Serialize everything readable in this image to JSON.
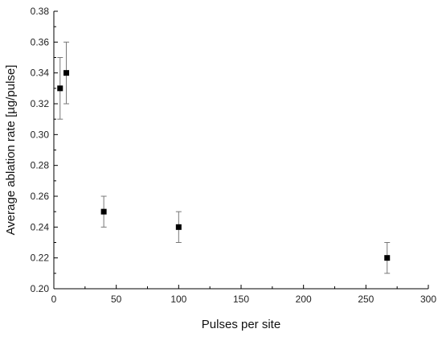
{
  "chart_data": {
    "type": "scatter",
    "title": "",
    "xlabel": "Pulses per site",
    "ylabel": "Average ablation rate [µg/pulse]",
    "xlim": [
      0,
      300
    ],
    "ylim": [
      0.2,
      0.38
    ],
    "xticks": [
      0,
      50,
      100,
      150,
      200,
      250,
      300
    ],
    "yticks": [
      0.2,
      0.22,
      0.24,
      0.26,
      0.28,
      0.3,
      0.32,
      0.34,
      0.36,
      0.38
    ],
    "xtick_labels": [
      "0",
      "50",
      "100",
      "150",
      "200",
      "250",
      "300"
    ],
    "ytick_labels": [
      "0.20",
      "0.22",
      "0.24",
      "0.26",
      "0.28",
      "0.30",
      "0.32",
      "0.34",
      "0.36",
      "0.38"
    ],
    "grid": false,
    "marker": "square",
    "marker_color": "#000000",
    "errorbar_color": "#777777",
    "series": [
      {
        "points": [
          {
            "x": 5,
            "y": 0.33,
            "err": 0.02
          },
          {
            "x": 10,
            "y": 0.34,
            "err": 0.02
          },
          {
            "x": 40,
            "y": 0.25,
            "err": 0.01
          },
          {
            "x": 100,
            "y": 0.24,
            "err": 0.01
          },
          {
            "x": 267,
            "y": 0.22,
            "err": 0.01
          }
        ]
      }
    ]
  }
}
